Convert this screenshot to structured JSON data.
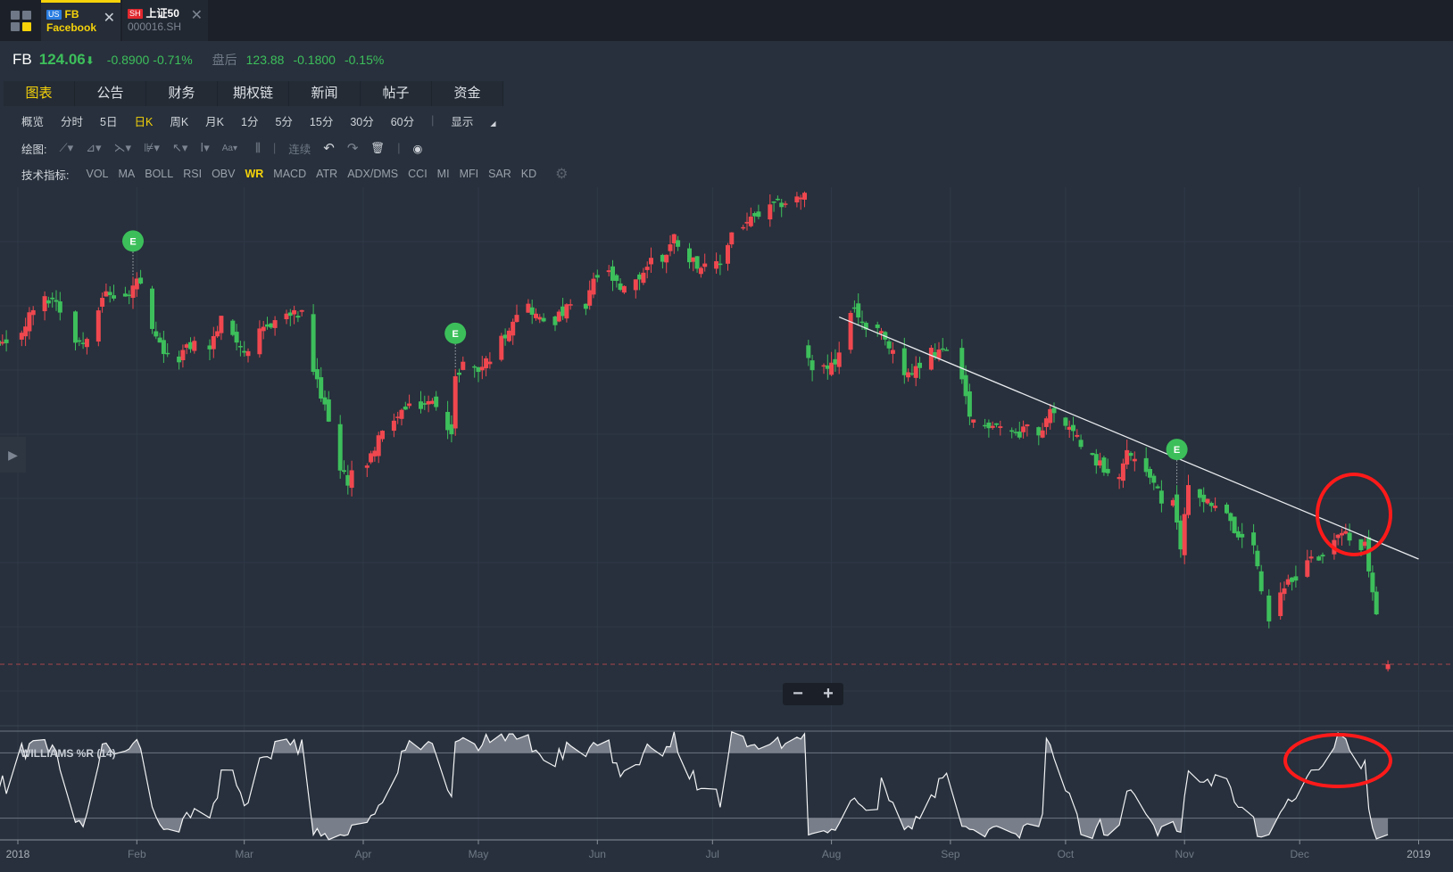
{
  "tabs": [
    {
      "market": "US",
      "symbol": "FB",
      "name": "Facebook",
      "market_color": "#2a7de1",
      "active": true
    },
    {
      "market": "SH",
      "symbol": "上证50",
      "name": "000016.SH",
      "market_color": "#e0282e",
      "active": false
    }
  ],
  "close_glyph": "✕",
  "quote": {
    "symbol": "FB",
    "price": "124.06",
    "arrow": "⬇",
    "change": "-0.8900",
    "change_pct": "-0.71%",
    "after_label": "盘后",
    "after_price": "123.88",
    "after_change": "-0.1800",
    "after_pct": "-0.15%"
  },
  "nav_tabs": [
    "图表",
    "公告",
    "财务",
    "期权链",
    "新闻",
    "帖子",
    "资金"
  ],
  "periods": [
    "概览",
    "分时",
    "5日",
    "日K",
    "周K",
    "月K",
    "1分",
    "5分",
    "15分",
    "30分",
    "60分"
  ],
  "period_active": "日K",
  "display_label": "显示",
  "draw": {
    "label": "绘图:",
    "continuous": "连续"
  },
  "indicators": {
    "label": "技术指标:",
    "items": [
      "VOL",
      "MA",
      "BOLL",
      "RSI",
      "OBV",
      "WR",
      "MACD",
      "ATR",
      "ADX/DMS",
      "CCI",
      "MI",
      "MFI",
      "SAR",
      "KD"
    ],
    "active": "WR"
  },
  "wr_label": "WILLIAMS %R (14)",
  "earnings_marker": "E",
  "zoom": {
    "minus": "−",
    "plus": "+"
  },
  "colors": {
    "up": "#f0474f",
    "down": "#3dbf5b",
    "earnings": "#3cbf5a",
    "annotation": "#ff1a1a"
  },
  "chart_data": {
    "type": "candlestick",
    "symbol": "FB",
    "year": 2018,
    "last_close": 124.06,
    "close_keypoints": [
      [
        -3,
        186.5
      ],
      [
        0,
        188.3
      ],
      [
        5,
        195.6
      ],
      [
        10,
        196.1
      ],
      [
        13,
        189.2
      ],
      [
        17,
        187.4
      ],
      [
        20,
        192.9
      ],
      [
        22,
        196.9
      ],
      [
        26,
        196.5
      ],
      [
        29,
        196.5
      ],
      [
        31,
        200.1
      ],
      [
        33,
        196.5
      ],
      [
        35,
        189.2
      ],
      [
        38,
        185.6
      ],
      [
        40,
        182.8
      ],
      [
        43,
        185.6
      ],
      [
        46,
        187.4
      ],
      [
        50,
        186.5
      ],
      [
        53,
        191.9
      ],
      [
        57,
        188.3
      ],
      [
        60,
        184.7
      ],
      [
        63,
        189.2
      ],
      [
        67,
        191.9
      ],
      [
        70,
        192.9
      ],
      [
        75,
        192.9
      ],
      [
        76,
        184.7
      ],
      [
        79,
        176.5
      ],
      [
        81,
        172.8
      ],
      [
        84,
        161.9
      ],
      [
        86,
        160.1
      ],
      [
        88,
        165.5
      ],
      [
        91,
        162.8
      ],
      [
        94,
        169.2
      ],
      [
        97,
        169.2
      ],
      [
        99,
        173.7
      ],
      [
        103,
        174.6
      ],
      [
        107,
        175.5
      ],
      [
        110,
        175.5
      ],
      [
        113,
        169.2
      ],
      [
        114,
        180.1
      ],
      [
        116,
        183.7
      ],
      [
        120,
        181.9
      ],
      [
        124,
        185.6
      ],
      [
        127,
        189.2
      ],
      [
        130,
        193.8
      ],
      [
        132,
        195.6
      ],
      [
        136,
        191.9
      ],
      [
        140,
        191.9
      ],
      [
        144,
        194.7
      ],
      [
        148,
        193.8
      ],
      [
        150,
        200.1
      ],
      [
        154,
        201
      ],
      [
        157,
        197.4
      ],
      [
        161,
        199.2
      ],
      [
        165,
        203.8
      ],
      [
        168,
        203.8
      ],
      [
        171,
        208.3
      ],
      [
        174,
        204.7
      ],
      [
        179,
        202
      ],
      [
        183,
        202.9
      ],
      [
        186,
        209.2
      ],
      [
        190,
        211.1
      ],
      [
        194,
        212.9
      ],
      [
        197,
        214.4
      ],
      [
        205,
        216.5
      ],
      [
        206,
        183.7
      ],
      [
        209,
        181.9
      ],
      [
        213,
        182.8
      ],
      [
        216,
        191.9
      ],
      [
        218,
        193.8
      ],
      [
        221,
        190.1
      ],
      [
        225,
        189.2
      ],
      [
        229,
        183.7
      ],
      [
        232,
        181
      ],
      [
        236,
        182.8
      ],
      [
        238,
        185.6
      ],
      [
        242,
        185.6
      ],
      [
        246,
        179.2
      ],
      [
        248,
        172.8
      ],
      [
        250,
        170.1
      ],
      [
        254,
        171.9
      ],
      [
        258,
        170.1
      ],
      [
        261,
        169.2
      ],
      [
        264,
        173.7
      ],
      [
        266,
        170.1
      ],
      [
        270,
        174.6
      ],
      [
        272,
        171
      ],
      [
        276,
        169.2
      ],
      [
        279,
        165.5
      ],
      [
        283,
        162.8
      ],
      [
        287,
        161.9
      ],
      [
        289,
        165.5
      ],
      [
        293,
        163.7
      ],
      [
        296,
        160.1
      ],
      [
        299,
        153.7
      ],
      [
        301,
        155.5
      ],
      [
        303,
        147.3
      ],
      [
        305,
        159.2
      ],
      [
        308,
        157.3
      ],
      [
        312,
        155.5
      ],
      [
        316,
        152.8
      ],
      [
        318,
        148.2
      ],
      [
        322,
        147.3
      ],
      [
        324,
        138.2
      ],
      [
        325,
        129.1
      ],
      [
        328,
        136.4
      ],
      [
        330,
        139.1
      ],
      [
        334,
        141.9
      ],
      [
        336,
        145.5
      ],
      [
        339,
        144.6
      ],
      [
        341,
        147.3
      ],
      [
        344,
        149.1
      ],
      [
        346,
        150
      ],
      [
        348,
        148.2
      ],
      [
        351,
        147.3
      ],
      [
        353,
        138.2
      ],
      [
        354,
        133.7
      ],
      [
        356,
        127.3
      ],
      [
        357,
        124.06
      ]
    ],
    "earnings_dates": [
      "2018-01-31",
      "2018-04-25",
      "2018-10-30"
    ],
    "x_axis_labels": [
      {
        "label": "2018",
        "date": "2018-01-01"
      },
      {
        "label": "Feb",
        "date": "2018-02-01"
      },
      {
        "label": "Mar",
        "date": "2018-03-01"
      },
      {
        "label": "Apr",
        "date": "2018-04-01"
      },
      {
        "label": "May",
        "date": "2018-05-01"
      },
      {
        "label": "Jun",
        "date": "2018-06-01"
      },
      {
        "label": "Jul",
        "date": "2018-07-01"
      },
      {
        "label": "Aug",
        "date": "2018-08-01"
      },
      {
        "label": "Sep",
        "date": "2018-09-01"
      },
      {
        "label": "Oct",
        "date": "2018-10-01"
      },
      {
        "label": "Nov",
        "date": "2018-11-01"
      },
      {
        "label": "Dec",
        "date": "2018-12-01"
      },
      {
        "label": "2019",
        "date": "2019-01-01"
      }
    ],
    "trendline": {
      "from": [
        "2018-08-03",
        192.5
      ],
      "to": [
        "2019-01-01",
        144.8
      ]
    },
    "indicator": {
      "name": "Williams %R",
      "period": 14,
      "levels": [
        -20,
        -80
      ],
      "range": [
        -100,
        0
      ]
    }
  }
}
